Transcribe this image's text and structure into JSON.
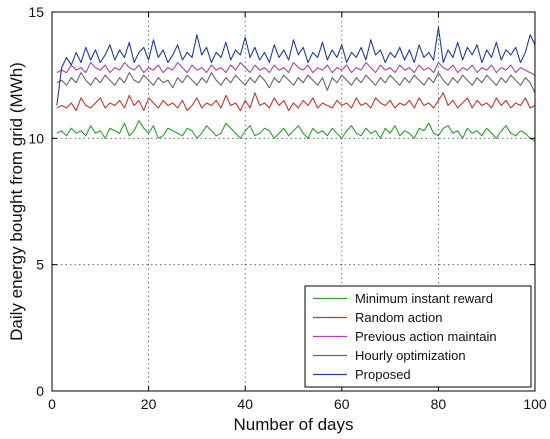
{
  "chart_data": {
    "type": "line",
    "title": "",
    "xlabel": "Number of days",
    "ylabel": "Daily energy bought from grid (MWh)",
    "xlim": [
      0,
      100
    ],
    "ylim": [
      0,
      15
    ],
    "xticks": [
      0,
      20,
      40,
      60,
      80,
      100
    ],
    "yticks": [
      0,
      5,
      10,
      15
    ],
    "grid": true,
    "legend_position": "bottom-right",
    "x": [
      1,
      2,
      3,
      4,
      5,
      6,
      7,
      8,
      9,
      10,
      11,
      12,
      13,
      14,
      15,
      16,
      17,
      18,
      19,
      20,
      21,
      22,
      23,
      24,
      25,
      26,
      27,
      28,
      29,
      30,
      31,
      32,
      33,
      34,
      35,
      36,
      37,
      38,
      39,
      40,
      41,
      42,
      43,
      44,
      45,
      46,
      47,
      48,
      49,
      50,
      51,
      52,
      53,
      54,
      55,
      56,
      57,
      58,
      59,
      60,
      61,
      62,
      63,
      64,
      65,
      66,
      67,
      68,
      69,
      70,
      71,
      72,
      73,
      74,
      75,
      76,
      77,
      78,
      79,
      80,
      81,
      82,
      83,
      84,
      85,
      86,
      87,
      88,
      89,
      90,
      91,
      92,
      93,
      94,
      95,
      96,
      97,
      98,
      99,
      100
    ],
    "series": [
      {
        "name": "Minimum instant reward",
        "color": "#2ca02c",
        "values": [
          10.2,
          10.3,
          10.1,
          10.4,
          10.2,
          10.3,
          10.1,
          10.5,
          10.2,
          10.3,
          10.0,
          10.4,
          10.3,
          10.2,
          10.6,
          10.1,
          10.3,
          10.7,
          10.4,
          10.2,
          10.5,
          10.0,
          10.1,
          10.4,
          10.3,
          10.2,
          10.1,
          10.4,
          10.3,
          10.0,
          10.2,
          10.5,
          10.3,
          10.1,
          10.2,
          10.6,
          10.4,
          10.2,
          10.0,
          10.3,
          10.5,
          10.1,
          10.2,
          10.4,
          10.3,
          10.0,
          10.2,
          10.4,
          10.1,
          10.3,
          10.5,
          10.2,
          10.0,
          10.4,
          10.2,
          10.3,
          10.1,
          10.4,
          10.2,
          10.0,
          10.3,
          10.5,
          10.2,
          10.1,
          10.4,
          10.2,
          10.3,
          10.0,
          10.4,
          10.2,
          10.5,
          10.1,
          10.3,
          10.2,
          10.0,
          10.4,
          10.3,
          10.6,
          10.2,
          10.1,
          10.4,
          10.5,
          10.2,
          10.3,
          10.0,
          10.4,
          10.2,
          10.3,
          10.1,
          10.4,
          10.2,
          10.0,
          10.3,
          10.5,
          10.2,
          10.1,
          10.3,
          10.2,
          10.0,
          9.9
        ]
      },
      {
        "name": "Random action",
        "color": "#c0392b",
        "values": [
          11.2,
          11.3,
          11.2,
          11.4,
          11.1,
          11.6,
          11.3,
          11.2,
          11.4,
          11.6,
          11.2,
          11.4,
          11.3,
          11.5,
          11.2,
          11.7,
          11.3,
          11.5,
          11.1,
          11.6,
          11.4,
          11.2,
          11.5,
          11.3,
          11.4,
          11.2,
          11.5,
          11.1,
          11.3,
          11.6,
          11.2,
          11.4,
          11.3,
          11.5,
          11.2,
          11.7,
          11.3,
          11.4,
          11.1,
          11.5,
          11.2,
          11.8,
          11.3,
          11.4,
          11.2,
          11.6,
          11.3,
          11.5,
          11.1,
          11.4,
          11.2,
          11.5,
          11.3,
          11.6,
          11.2,
          11.4,
          11.3,
          11.2,
          11.5,
          11.3,
          11.4,
          11.2,
          11.6,
          11.3,
          11.4,
          11.2,
          11.6,
          11.4,
          11.3,
          11.5,
          11.2,
          11.4,
          11.3,
          11.5,
          11.2,
          11.6,
          11.3,
          11.4,
          11.2,
          11.5,
          11.8,
          11.3,
          11.5,
          11.2,
          11.4,
          11.6,
          11.2,
          11.5,
          11.3,
          11.4,
          11.2,
          11.6,
          11.3,
          11.5,
          11.2,
          11.4,
          11.3,
          11.6,
          11.2,
          11.3
        ]
      },
      {
        "name": "Previous action maintain",
        "color": "#b03fb8",
        "values": [
          12.6,
          12.7,
          12.6,
          12.9,
          12.7,
          12.8,
          12.6,
          13.0,
          12.8,
          12.7,
          12.9,
          12.6,
          12.8,
          12.7,
          13.0,
          12.8,
          12.7,
          12.9,
          12.6,
          12.8,
          12.7,
          12.9,
          12.6,
          12.8,
          12.7,
          13.0,
          12.8,
          12.6,
          12.9,
          12.7,
          12.8,
          12.6,
          12.9,
          12.7,
          12.8,
          12.6,
          12.9,
          12.7,
          13.0,
          12.8,
          12.6,
          12.9,
          12.7,
          12.8,
          12.6,
          12.9,
          12.7,
          12.8,
          12.6,
          13.0,
          12.8,
          12.7,
          12.9,
          12.6,
          12.8,
          12.7,
          12.9,
          12.6,
          12.8,
          12.7,
          12.9,
          12.6,
          12.8,
          12.7,
          13.0,
          12.8,
          12.6,
          12.9,
          12.7,
          12.8,
          12.6,
          12.9,
          12.7,
          12.8,
          12.6,
          12.9,
          12.7,
          12.8,
          12.6,
          13.0,
          12.8,
          12.7,
          12.9,
          12.6,
          12.8,
          12.7,
          12.9,
          12.6,
          12.8,
          12.7,
          12.9,
          12.6,
          12.8,
          12.7,
          12.9,
          12.6,
          12.8,
          12.7,
          12.6,
          12.5
        ]
      },
      {
        "name": "Hourly optimization",
        "color": "#666666",
        "values": [
          12.2,
          12.3,
          12.1,
          12.4,
          12.2,
          12.6,
          12.3,
          12.1,
          12.4,
          12.2,
          12.5,
          12.3,
          12.1,
          12.4,
          12.2,
          12.6,
          12.3,
          12.2,
          12.5,
          12.3,
          12.1,
          12.4,
          12.2,
          12.3,
          12.0,
          12.4,
          12.2,
          12.5,
          12.3,
          12.1,
          12.4,
          12.2,
          12.6,
          12.3,
          12.1,
          12.4,
          12.2,
          12.5,
          12.3,
          12.1,
          12.4,
          12.2,
          12.5,
          12.3,
          12.0,
          12.4,
          12.2,
          12.5,
          12.3,
          12.1,
          12.4,
          12.2,
          12.5,
          12.3,
          12.1,
          12.4,
          11.9,
          12.4,
          12.2,
          12.5,
          12.3,
          12.1,
          12.4,
          12.2,
          12.5,
          12.3,
          12.1,
          12.4,
          12.2,
          12.5,
          12.3,
          12.1,
          12.4,
          12.2,
          12.5,
          12.3,
          12.1,
          12.4,
          12.2,
          12.6,
          12.3,
          12.1,
          12.4,
          12.2,
          12.5,
          12.3,
          12.1,
          12.4,
          12.2,
          12.5,
          12.3,
          12.1,
          12.4,
          12.2,
          12.5,
          12.3,
          12.1,
          12.4,
          12.2,
          11.8
        ]
      },
      {
        "name": "Proposed",
        "color": "#1f3e99",
        "values": [
          11.3,
          12.8,
          13.2,
          12.9,
          13.4,
          13.0,
          13.6,
          13.1,
          13.5,
          13.0,
          13.3,
          13.7,
          13.1,
          13.5,
          13.2,
          13.8,
          13.0,
          13.4,
          13.6,
          13.1,
          13.9,
          13.2,
          13.5,
          13.0,
          13.3,
          13.7,
          13.1,
          13.4,
          13.2,
          14.1,
          13.3,
          13.6,
          13.0,
          13.4,
          13.2,
          13.8,
          13.1,
          13.5,
          13.3,
          14.0,
          13.2,
          13.6,
          13.1,
          13.4,
          13.0,
          13.7,
          13.2,
          13.5,
          13.1,
          13.9,
          13.3,
          13.6,
          13.0,
          13.4,
          13.2,
          13.8,
          13.1,
          13.5,
          13.2,
          13.7,
          13.0,
          13.4,
          13.2,
          13.6,
          13.1,
          13.9,
          13.3,
          13.5,
          13.0,
          13.4,
          13.2,
          13.6,
          13.1,
          13.5,
          13.0,
          13.7,
          13.2,
          13.4,
          13.1,
          14.4,
          13.0,
          13.5,
          13.2,
          13.8,
          13.1,
          13.6,
          13.3,
          13.7,
          13.0,
          13.5,
          13.2,
          13.8,
          13.1,
          13.5,
          13.3,
          13.6,
          13.0,
          13.4,
          14.1,
          13.7
        ]
      }
    ]
  }
}
